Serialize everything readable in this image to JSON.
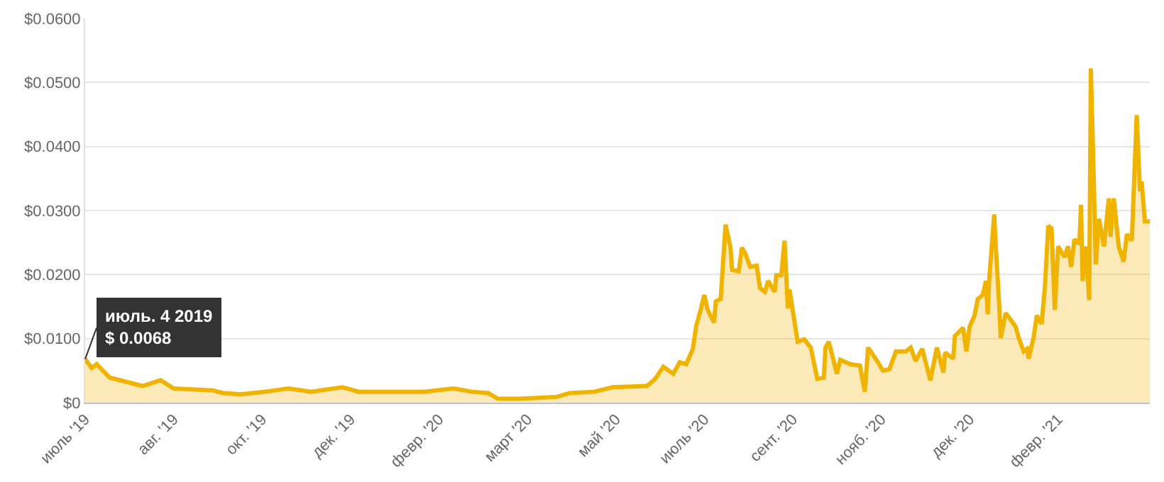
{
  "chart_data": {
    "type": "area",
    "color": "#f0b400",
    "x": [
      "2019-07-04",
      "2019-07-08",
      "2019-07-11",
      "2019-07-19",
      "2019-08-08",
      "2019-08-19",
      "2019-08-27",
      "2019-09-20",
      "2019-09-26",
      "2019-10-07",
      "2019-10-22",
      "2019-11-05",
      "2019-11-19",
      "2019-12-08",
      "2019-12-18",
      "2020-01-07",
      "2020-01-27",
      "2020-02-14",
      "2020-02-25",
      "2020-03-06",
      "2020-03-12",
      "2020-03-25",
      "2020-04-17",
      "2020-04-25",
      "2020-05-10",
      "2020-05-21",
      "2020-06-11",
      "2020-06-16",
      "2020-06-21",
      "2020-06-27",
      "2020-07-01",
      "2020-07-05",
      "2020-07-09",
      "2020-07-11",
      "2020-07-14",
      "2020-07-16",
      "2020-07-18",
      "2020-07-22",
      "2020-07-23",
      "2020-07-26",
      "2020-07-29",
      "2020-08-01",
      "2020-08-02",
      "2020-08-06",
      "2020-08-08",
      "2020-08-10",
      "2020-08-13",
      "2020-08-17",
      "2020-08-19",
      "2020-08-22",
      "2020-08-24",
      "2020-08-28",
      "2020-08-29",
      "2020-09-01",
      "2020-09-03",
      "2020-09-05",
      "2020-09-06",
      "2020-09-11",
      "2020-09-15",
      "2020-09-19",
      "2020-09-23",
      "2020-09-27",
      "2020-09-28",
      "2020-09-30",
      "2020-10-05",
      "2020-10-07",
      "2020-10-13",
      "2020-10-19",
      "2020-10-22",
      "2020-10-24",
      "2020-10-30",
      "2020-11-02",
      "2020-11-06",
      "2020-11-10",
      "2020-11-16",
      "2020-11-19",
      "2020-11-22",
      "2020-11-26",
      "2020-12-01",
      "2020-12-05",
      "2020-12-09",
      "2020-12-10",
      "2020-12-15",
      "2020-12-16",
      "2020-12-21",
      "2020-12-23",
      "2020-12-25",
      "2020-12-28",
      "2020-12-30",
      "2021-01-02",
      "2021-01-04",
      "2021-01-05",
      "2021-01-06",
      "2021-01-09",
      "2021-01-10",
      "2021-01-12",
      "2021-01-13",
      "2021-01-16",
      "2021-01-22",
      "2021-01-24",
      "2021-01-27",
      "2021-01-29",
      "2021-01-30",
      "2021-02-02",
      "2021-02-04",
      "2021-02-07",
      "2021-02-09",
      "2021-02-11",
      "2021-02-13",
      "2021-02-15",
      "2021-02-17",
      "2021-02-21",
      "2021-02-23",
      "2021-02-25",
      "2021-02-27",
      "2021-03-02",
      "2021-03-03",
      "2021-03-04",
      "2021-03-06",
      "2021-03-08",
      "2021-03-09",
      "2021-03-11",
      "2021-03-12",
      "2021-03-14",
      "2021-03-17",
      "2021-03-20",
      "2021-03-21",
      "2021-03-23",
      "2021-03-26",
      "2021-03-29",
      "2021-03-31",
      "2021-04-03",
      "2021-04-06",
      "2021-04-08",
      "2021-04-09",
      "2021-04-11",
      "2021-04-14"
    ],
    "values": [
      0.0068,
      0.0054,
      0.006,
      0.0039,
      0.0026,
      0.0035,
      0.0022,
      0.0019,
      0.0015,
      0.0013,
      0.0017,
      0.0022,
      0.0017,
      0.0024,
      0.0017,
      0.0017,
      0.0017,
      0.0022,
      0.0017,
      0.0015,
      0.0006,
      0.0006,
      0.0009,
      0.0015,
      0.0017,
      0.0024,
      0.0026,
      0.0037,
      0.0056,
      0.0045,
      0.0063,
      0.006,
      0.0084,
      0.0119,
      0.0147,
      0.0168,
      0.0145,
      0.0125,
      0.0158,
      0.0162,
      0.0278,
      0.0242,
      0.0207,
      0.0205,
      0.0242,
      0.0233,
      0.0212,
      0.0214,
      0.0179,
      0.0173,
      0.019,
      0.0173,
      0.0199,
      0.0199,
      0.0253,
      0.0147,
      0.0177,
      0.0095,
      0.0099,
      0.0086,
      0.0037,
      0.0039,
      0.0086,
      0.0095,
      0.0045,
      0.0067,
      0.006,
      0.0058,
      0.0017,
      0.0086,
      0.0063,
      0.005,
      0.0052,
      0.008,
      0.008,
      0.0086,
      0.0065,
      0.0084,
      0.0035,
      0.0086,
      0.0047,
      0.0078,
      0.0069,
      0.0104,
      0.0117,
      0.008,
      0.0119,
      0.0136,
      0.0162,
      0.0168,
      0.019,
      0.0138,
      0.0194,
      0.0294,
      0.0242,
      0.0155,
      0.0101,
      0.014,
      0.0119,
      0.0101,
      0.008,
      0.0084,
      0.0069,
      0.0101,
      0.0136,
      0.0123,
      0.0183,
      0.0276,
      0.0272,
      0.0145,
      0.0244,
      0.0227,
      0.0244,
      0.0212,
      0.0255,
      0.0248,
      0.0309,
      0.019,
      0.0244,
      0.016,
      0.0522,
      0.0328,
      0.0216,
      0.0287,
      0.0244,
      0.0319,
      0.0259,
      0.0319,
      0.0244,
      0.022,
      0.0263,
      0.0253,
      0.0449,
      0.033,
      0.0345,
      0.0283,
      0.0283
    ],
    "xlim": [
      "2019-07-04",
      "2021-04-14"
    ],
    "xticks": [
      {
        "value": "2019-07-04",
        "label": "июль '19"
      },
      {
        "value": "2019-08-27",
        "label": "авг. '19"
      },
      {
        "value": "2019-10-20",
        "label": "окт. '19"
      },
      {
        "value": "2019-12-13",
        "label": "дек. '19"
      },
      {
        "value": "2020-02-05",
        "label": "февр. '20"
      },
      {
        "value": "2020-03-30",
        "label": "март '20"
      },
      {
        "value": "2020-05-23",
        "label": "май '20"
      },
      {
        "value": "2020-07-16",
        "label": "июль '20"
      },
      {
        "value": "2020-09-08",
        "label": "сент. '20"
      },
      {
        "value": "2020-11-01",
        "label": "нояб. '20"
      },
      {
        "value": "2020-12-25",
        "label": "дек. '20"
      },
      {
        "value": "2021-02-17",
        "label": "февр. '21"
      }
    ],
    "ylim": [
      0,
      0.06
    ],
    "yticks": [
      {
        "value": 0,
        "label": "$0"
      },
      {
        "value": 0.01,
        "label": "$0.0100"
      },
      {
        "value": 0.02,
        "label": "$0.0200"
      },
      {
        "value": 0.03,
        "label": "$0.0300"
      },
      {
        "value": 0.04,
        "label": "$0.0400"
      },
      {
        "value": 0.05,
        "label": "$0.0500"
      },
      {
        "value": 0.06,
        "label": "$0.0600"
      }
    ],
    "grid": "y",
    "legend": false,
    "annotations": [
      {
        "text": "июль. 4 2019\n$ 0.0068",
        "x": "2019-07-04",
        "y": 0.0068
      }
    ]
  }
}
